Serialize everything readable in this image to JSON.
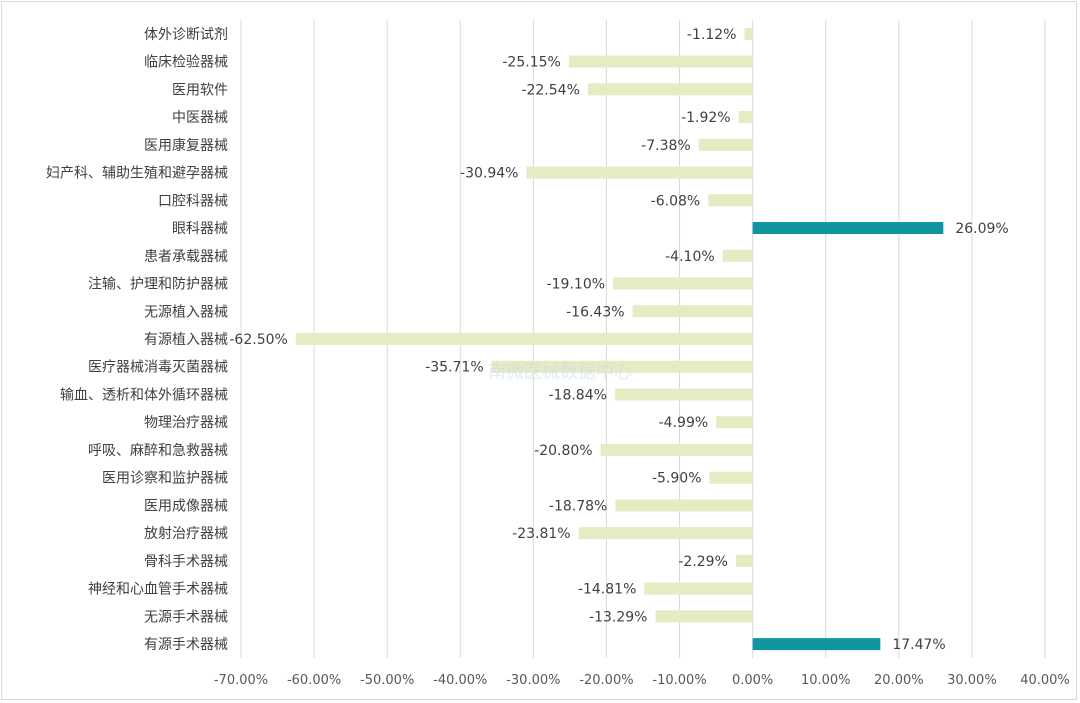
{
  "chart_data": {
    "type": "bar",
    "orientation": "horizontal",
    "title": "",
    "xlabel": "",
    "ylabel": "",
    "xlim": [
      -70,
      40
    ],
    "x_ticks": [
      -70,
      -60,
      -50,
      -40,
      -30,
      -20,
      -10,
      0,
      10,
      20,
      30,
      40
    ],
    "x_tick_labels": [
      "-70.00%",
      "-60.00%",
      "-50.00%",
      "-40.00%",
      "-30.00%",
      "-20.00%",
      "-10.00%",
      "0.00%",
      "10.00%",
      "20.00%",
      "30.00%",
      "40.00%"
    ],
    "grid": true,
    "colors": {
      "negative": "#e6ebc3",
      "positive": "#12949e",
      "grid": "#d9d9d9"
    },
    "categories": [
      "体外诊断试剂",
      "临床检验器械",
      "医用软件",
      "中医器械",
      "医用康复器械",
      "妇产科、辅助生殖和避孕器械",
      "口腔科器械",
      "眼科器械",
      "患者承载器械",
      "注输、护理和防护器械",
      "无源植入器械",
      "有源植入器械",
      "医疗器械消毒灭菌器械",
      "输血、透析和体外循环器械",
      "物理治疗器械",
      "呼吸、麻醉和急救器械",
      "医用诊察和监护器械",
      "医用成像器械",
      "放射治疗器械",
      "骨科手术器械",
      "神经和心血管手术器械",
      "无源手术器械",
      "有源手术器械"
    ],
    "values": [
      -1.12,
      -25.15,
      -22.54,
      -1.92,
      -7.38,
      -30.94,
      -6.08,
      26.09,
      -4.1,
      -19.1,
      -16.43,
      -62.5,
      -35.71,
      -18.84,
      -4.99,
      -20.8,
      -5.9,
      -18.78,
      -23.81,
      -2.29,
      -14.81,
      -13.29,
      17.47
    ],
    "value_labels": [
      "-1.12%",
      "-25.15%",
      "-22.54%",
      "-1.92%",
      "-7.38%",
      "-30.94%",
      "-6.08%",
      "26.09%",
      "-4.10%",
      "-19.10%",
      "-16.43%",
      "-62.50%",
      "-35.71%",
      "-18.84%",
      "-4.99%",
      "-20.80%",
      "-5.90%",
      "-18.78%",
      "-23.81%",
      "-2.29%",
      "-14.81%",
      "-13.29%",
      "17.47%"
    ]
  },
  "watermark": {
    "text": "南微医械数据中心"
  }
}
